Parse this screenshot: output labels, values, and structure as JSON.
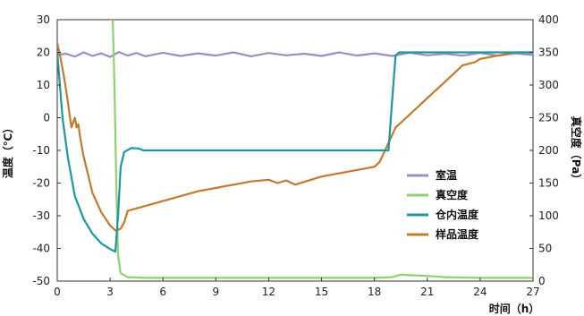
{
  "chart_data": {
    "type": "line",
    "title": "",
    "xlabel": "时间（h）",
    "ylabel_left": "温度（℃）",
    "ylabel_right": "真空度（Pa）",
    "xlim": [
      0,
      27
    ],
    "ylim_left": [
      -50,
      30
    ],
    "ylim_right": [
      0,
      400
    ],
    "x_ticks": [
      0,
      3,
      6,
      9,
      12,
      15,
      18,
      21,
      24,
      27
    ],
    "y_left_ticks": [
      -50,
      -40,
      -30,
      -20,
      -10,
      0,
      10,
      20,
      30
    ],
    "y_right_ticks": [
      0,
      50,
      100,
      150,
      200,
      250,
      300,
      350,
      400
    ],
    "grid": false,
    "legend_position": "center-right",
    "series": [
      {
        "name": "室温",
        "axis": "left",
        "color": "#9b8ec4",
        "x": [
          0,
          0.5,
          1,
          1.5,
          2,
          2.5,
          3,
          3.5,
          4,
          4.5,
          5,
          6,
          7,
          8,
          9,
          10,
          11,
          12,
          13,
          14,
          15,
          16,
          17,
          18,
          19,
          20,
          21,
          22,
          23,
          24,
          25,
          26,
          27
        ],
        "y": [
          19.2,
          19.6,
          18.7,
          20.0,
          18.9,
          19.7,
          18.6,
          20.1,
          19.0,
          19.8,
          18.8,
          19.9,
          18.9,
          19.7,
          19.0,
          20.0,
          18.8,
          19.8,
          19.1,
          19.6,
          18.9,
          20.0,
          19.0,
          19.7,
          18.9,
          19.9,
          19.1,
          19.6,
          19.0,
          19.8,
          19.0,
          19.7,
          19.2
        ]
      },
      {
        "name": "真空度",
        "axis": "right",
        "color": "#8fd16e",
        "x": [
          3.05,
          3.15,
          3.25,
          3.35,
          3.45,
          3.6,
          4,
          5,
          6,
          9,
          12,
          15,
          18,
          19,
          19.5,
          20,
          21,
          22,
          24,
          27
        ],
        "y": [
          400,
          400,
          300,
          150,
          40,
          12,
          6,
          5,
          5,
          5,
          5,
          5,
          5,
          6,
          10,
          9,
          8,
          6,
          5,
          5
        ]
      },
      {
        "name": "仓内温度",
        "axis": "left",
        "color": "#1a9aa0",
        "x": [
          0,
          0.3,
          0.6,
          1,
          1.5,
          2,
          2.5,
          3,
          3.3,
          3.45,
          3.6,
          3.8,
          4.2,
          4.6,
          4.9,
          5.2,
          6,
          9,
          12,
          15,
          18,
          18.8,
          19.0,
          19.2,
          19.4,
          21,
          24,
          27
        ],
        "y": [
          20,
          0,
          -12,
          -24,
          -31,
          -35.5,
          -38.5,
          -40.2,
          -41,
          -30,
          -15,
          -10.5,
          -9.3,
          -9.4,
          -10,
          -10,
          -10,
          -10,
          -10,
          -10,
          -10,
          -10,
          5,
          19,
          20,
          20,
          20,
          20
        ]
      },
      {
        "name": "样品温度",
        "axis": "left",
        "color": "#c47a2c",
        "x": [
          0,
          0.2,
          0.4,
          0.6,
          0.8,
          1.0,
          1.1,
          1.2,
          1.3,
          1.5,
          2,
          2.5,
          3,
          3.3,
          3.6,
          3.8,
          4,
          5,
          6,
          7,
          8,
          9,
          10,
          11,
          12,
          12.5,
          13,
          13.5,
          15,
          16,
          17,
          18,
          18.3,
          19.2,
          20,
          21,
          22,
          23,
          23.7,
          24,
          25,
          26,
          27
        ],
        "y": [
          23,
          18,
          12,
          5,
          -3,
          0,
          -3,
          -2,
          -6,
          -12,
          -23,
          -29,
          -33,
          -34.5,
          -34,
          -32,
          -28.5,
          -27,
          -25.5,
          -24,
          -22.5,
          -21.5,
          -20.5,
          -19.5,
          -19,
          -20,
          -19.2,
          -20.5,
          -18,
          -17,
          -16,
          -15,
          -13.5,
          -3,
          1,
          6,
          11,
          16,
          17,
          18,
          19,
          20,
          20
        ]
      }
    ]
  }
}
